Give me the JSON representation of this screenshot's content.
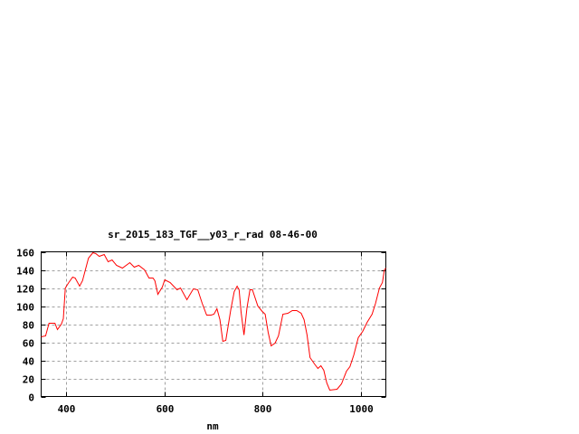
{
  "chart_data": {
    "type": "line",
    "title": "sr_2015_183_TGF__y03_r_rad 08-46-00",
    "xlabel": "nm",
    "ylabel": "",
    "xlim": [
      350,
      1050
    ],
    "ylim": [
      0,
      160
    ],
    "xticks": [
      400,
      600,
      800,
      1000
    ],
    "yticks": [
      0,
      20,
      40,
      60,
      80,
      100,
      120,
      140,
      160
    ],
    "grid": true,
    "line_color": "#ff0000",
    "series": [
      {
        "x": [
          350,
          359,
          366,
          378,
          383,
          391,
          395,
          399,
          406,
          414,
          419,
          428,
          434,
          446,
          455,
          461,
          468,
          478,
          486,
          494,
          503,
          515,
          530,
          539,
          548,
          560,
          569,
          577,
          581,
          587,
          596,
          601,
          612,
          626,
          633,
          646,
          659,
          668,
          677,
          686,
          695,
          701,
          707,
          713,
          719,
          725,
          735,
          742,
          748,
          752,
          756,
          762,
          768,
          774,
          779,
          790,
          799,
          805,
          811,
          817,
          825,
          832,
          841,
          851,
          860,
          869,
          878,
          884,
          890,
          896,
          905,
          912,
          918,
          924,
          930,
          936,
          951,
          960,
          970,
          977,
          985,
          994,
          1003,
          1012,
          1022,
          1029,
          1037,
          1043,
          1047,
          1050
        ],
        "y": [
          66,
          67,
          81,
          81,
          74,
          80,
          86,
          120,
          126,
          132,
          131,
          122,
          128,
          153,
          159,
          158,
          155,
          157,
          149,
          151,
          145,
          142,
          148,
          143,
          145,
          140,
          131,
          131,
          128,
          113,
          121,
          129,
          126,
          118,
          120,
          107,
          119,
          118,
          103,
          90,
          90,
          91,
          97,
          85,
          61,
          62,
          96,
          116,
          122,
          118,
          93,
          68,
          98,
          118,
          118,
          100,
          94,
          91,
          71,
          56,
          59,
          67,
          91,
          92,
          95,
          95,
          92,
          85,
          68,
          43,
          36,
          31,
          34,
          29,
          15,
          7,
          8,
          14,
          28,
          33,
          46,
          65,
          72,
          82,
          91,
          103,
          120,
          126,
          140,
          142
        ]
      }
    ]
  }
}
